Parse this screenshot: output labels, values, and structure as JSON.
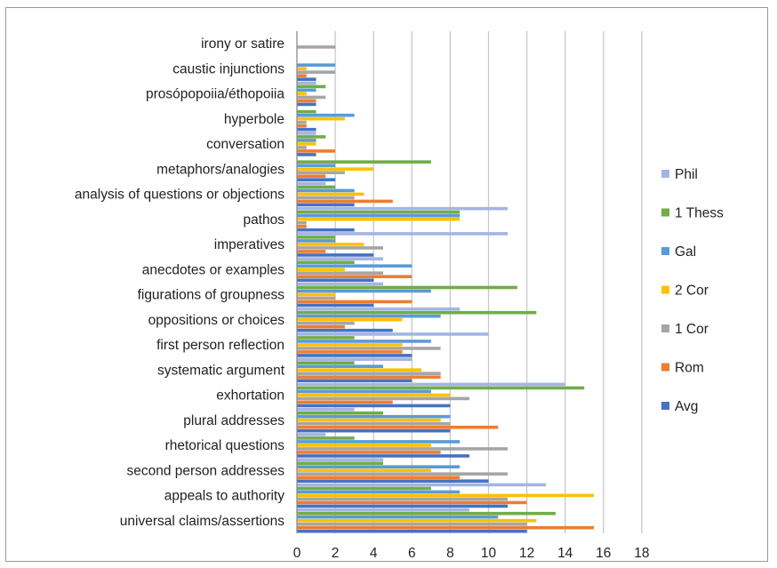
{
  "chart_data": {
    "type": "bar",
    "orientation": "horizontal",
    "title": "",
    "xlabel": "",
    "ylabel": "",
    "xlim": [
      0,
      18
    ],
    "xticks": [
      0,
      2,
      4,
      6,
      8,
      10,
      12,
      14,
      16,
      18
    ],
    "grid": "vertical",
    "legend_position": "right",
    "categories": [
      "irony or satire",
      "caustic injunctions",
      "prosópopoiia/éthopoiia",
      "hyperbole",
      "conversation",
      "metaphors/analogies",
      "analysis of questions or objections",
      "pathos",
      "imperatives",
      "anecdotes or examples",
      "figurations of groupness",
      "oppositions or choices",
      "first person reflection",
      "systematic argument",
      "exhortation",
      "plural addresses",
      "rhetorical questions",
      "second person addresses",
      "appeals to authority",
      "universal claims/assertions"
    ],
    "series": [
      {
        "name": "Phil",
        "color": "#a4b4e4",
        "values": [
          0,
          0,
          1,
          0,
          1,
          0,
          1.5,
          11,
          11,
          4.5,
          4.5,
          8.5,
          10,
          6,
          14,
          3,
          1.5,
          4.5,
          13,
          9
        ]
      },
      {
        "name": "1 Thess",
        "color": "#70ad47",
        "values": [
          0,
          0,
          1.5,
          1,
          1.5,
          7,
          2,
          8.5,
          2,
          3,
          11.5,
          12.5,
          3,
          3,
          15,
          4.5,
          3,
          4.5,
          7,
          13.5
        ]
      },
      {
        "name": "Gal",
        "color": "#5b9bd5",
        "values": [
          0,
          2,
          1,
          3,
          1,
          2,
          3,
          8.5,
          2,
          6,
          7,
          7.5,
          7,
          4.5,
          7,
          8,
          8.5,
          8.5,
          8.5,
          10.5
        ]
      },
      {
        "name": "2 Cor",
        "color": "#ffc000",
        "values": [
          0,
          0.5,
          0.5,
          2.5,
          1,
          4,
          3.5,
          8.5,
          3.5,
          2.5,
          2,
          5.5,
          5.5,
          6.5,
          8,
          7.5,
          7,
          7,
          15.5,
          12.5
        ]
      },
      {
        "name": "1 Cor",
        "color": "#a5a5a5",
        "values": [
          2,
          2,
          1.5,
          0.5,
          0.5,
          2.5,
          3,
          0.5,
          4.5,
          4.5,
          2,
          3,
          7.5,
          7.5,
          9,
          8,
          11,
          11,
          11,
          12
        ]
      },
      {
        "name": "Rom",
        "color": "#ed7d31",
        "values": [
          0,
          0.5,
          1,
          0.5,
          2,
          1.5,
          5,
          0.5,
          1.5,
          6,
          6,
          2.5,
          5.5,
          7.5,
          5,
          10.5,
          7.5,
          8.5,
          12,
          15.5
        ]
      },
      {
        "name": "Avg",
        "color": "#4472c4",
        "values": [
          0,
          1,
          1,
          1,
          1,
          2,
          3,
          3,
          4,
          4,
          4,
          5,
          6,
          6,
          8,
          8,
          9,
          10,
          11,
          12
        ]
      }
    ]
  }
}
